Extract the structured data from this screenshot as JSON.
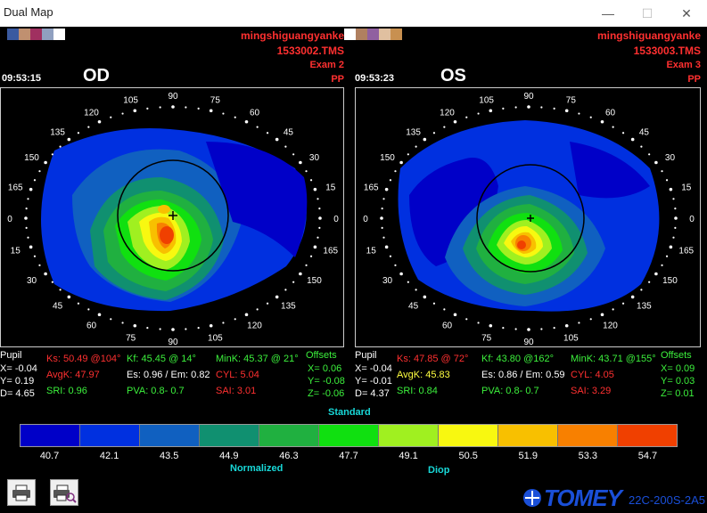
{
  "window": {
    "title": "Dual Map",
    "minimize": "—",
    "maximize": "☐",
    "close": "✕"
  },
  "od": {
    "eye": "OD",
    "patient": "mingshiguangyanke",
    "file": "1533002.TMS",
    "exam": "Exam 2",
    "mode": "PP",
    "time": "09:53:15",
    "pupil_label": "Pupil",
    "pupil_x": "X= -0.04",
    "pupil_y": "Y= 0.19",
    "pupil_d": "D= 4.65",
    "ks": "Ks: 50.49 @104°",
    "avgk": "AvgK: 47.97",
    "sri": "SRI: 0.96",
    "kf": "Kf: 45.45 @ 14°",
    "es": "Es: 0.96 / Em: 0.82",
    "pva": "PVA:  0.8-  0.7",
    "mink": "MinK: 45.37 @ 21°",
    "cyl": "CYL:  5.04",
    "sai": "SAI: 3.01",
    "offsets_label": "Offsets",
    "off_x": "X=  0.06",
    "off_y": "Y= -0.08",
    "off_z": "Z= -0.06"
  },
  "os": {
    "eye": "OS",
    "patient": "mingshiguangyanke",
    "file": "1533003.TMS",
    "exam": "Exam 3",
    "mode": "PP",
    "time": "09:53:23",
    "pupil_label": "Pupil",
    "pupil_x": "X= -0.04",
    "pupil_y": "Y= -0.01",
    "pupil_d": "D= 4.37",
    "ks": "Ks: 47.85 @ 72°",
    "avgk": "AvgK: 45.83",
    "sri": "SRI: 0.84",
    "kf": "Kf: 43.80 @162°",
    "es": "Es: 0.86 / Em: 0.59",
    "pva": "PVA:  0.8-  0.7",
    "mink": "MinK: 43.71 @155°",
    "cyl": "CYL:  4.05",
    "sai": "SAI: 3.29",
    "offsets_label": "Offsets",
    "off_x": "X=  0.09",
    "off_y": "Y=  0.03",
    "off_z": "Z=  0.01"
  },
  "axis_labels": [
    "0",
    "15",
    "30",
    "45",
    "60",
    "75",
    "90",
    "105",
    "120",
    "135",
    "150",
    "165"
  ],
  "axis_left": [
    "0",
    "15",
    "30",
    "45",
    "60",
    "75",
    "90",
    "105",
    "120",
    "135",
    "150",
    "165"
  ],
  "scale": {
    "title": "Standard",
    "normalized": "Normalized",
    "unit": "Diop",
    "values": [
      "40.7",
      "42.1",
      "43.5",
      "44.9",
      "46.3",
      "47.7",
      "49.1",
      "50.5",
      "51.9",
      "53.3",
      "54.7"
    ],
    "colors": [
      "#0000c8",
      "#0030e0",
      "#1060c0",
      "#109070",
      "#20b040",
      "#10e010",
      "#a0f020",
      "#f8f810",
      "#f8c000",
      "#f88000",
      "#f04000"
    ]
  },
  "footer": {
    "logo": "TOMEY",
    "code": "22C-200S-2A5"
  }
}
